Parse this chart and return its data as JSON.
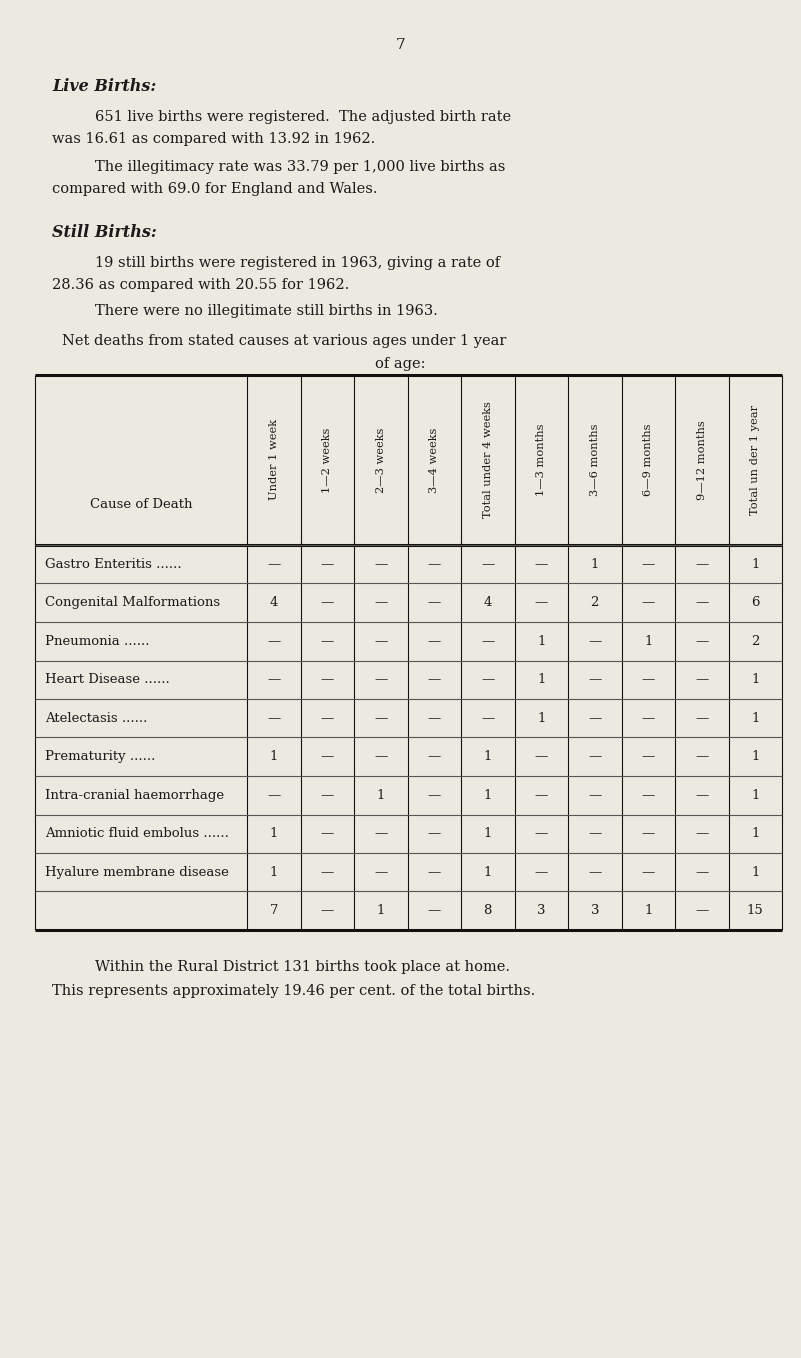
{
  "page_number": "7",
  "bg_color": "#ece9e0",
  "text_color": "#1a1a1a",
  "live_births_title": "Live Births:",
  "still_births_title": "Still Births:",
  "col_headers": [
    "Under 1 week",
    "1—2 weeks",
    "2—3 weeks",
    "3—4 weeks",
    "Total under 4 weeks",
    "1—3 months",
    "3—6 months",
    "6—9 months",
    "9—12 months",
    "Total un der 1 year"
  ],
  "row_labels": [
    "Gastro Enteritis ......",
    "Congenital Malformations",
    "Pneumonia ......",
    "Heart Disease ......",
    "Atelectasis ......",
    "Prematurity ......",
    "Intra-cranial haemorrhage",
    "Amniotic fluid embolus ......",
    "Hyalure membrane disease"
  ],
  "table_data": [
    [
      "—",
      "—",
      "—",
      "—",
      "—",
      "—",
      "1",
      "—",
      "—",
      "1"
    ],
    [
      "4",
      "—",
      "—",
      "—",
      "4",
      "—",
      "2",
      "—",
      "—",
      "6"
    ],
    [
      "—",
      "—",
      "—",
      "—",
      "—",
      "1",
      "—",
      "1",
      "—",
      "2"
    ],
    [
      "—",
      "—",
      "—",
      "—",
      "—",
      "1",
      "—",
      "—",
      "—",
      "1"
    ],
    [
      "—",
      "—",
      "—",
      "—",
      "—",
      "1",
      "—",
      "—",
      "—",
      "1"
    ],
    [
      "1",
      "—",
      "—",
      "—",
      "1",
      "—",
      "—",
      "—",
      "—",
      "1"
    ],
    [
      "—",
      "—",
      "1",
      "—",
      "1",
      "—",
      "—",
      "—",
      "—",
      "1"
    ],
    [
      "1",
      "—",
      "—",
      "—",
      "1",
      "—",
      "—",
      "—",
      "—",
      "1"
    ],
    [
      "1",
      "—",
      "—",
      "—",
      "1",
      "—",
      "—",
      "—",
      "—",
      "1"
    ]
  ],
  "totals_row": [
    "7",
    "—",
    "1",
    "—",
    "8",
    "3",
    "3",
    "1",
    "—",
    "15"
  ]
}
